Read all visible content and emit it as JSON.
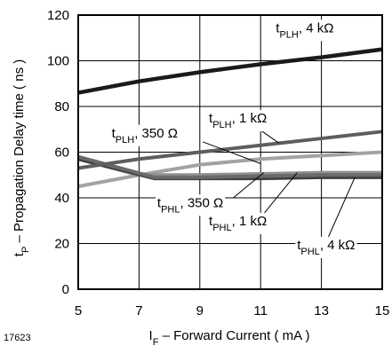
{
  "figure_id": "17623",
  "chart_data": {
    "type": "line",
    "xlabel": {
      "main": "I",
      "sub": "F",
      "rest": " – Forward  Current  ( mA )"
    },
    "ylabel": {
      "main": "t",
      "sub": "P",
      "rest": " – Propagation  Delay  time  ( ns )"
    },
    "xlim": [
      5,
      15
    ],
    "ylim": [
      0,
      120
    ],
    "xticks": [
      5,
      7,
      9,
      11,
      13,
      15
    ],
    "yticks": [
      0,
      20,
      40,
      60,
      80,
      100,
      120
    ],
    "grid": true,
    "series": [
      {
        "name": "tPLH, 4 kΩ",
        "label": {
          "main": "t",
          "sub": "PLH",
          "rest": ", 4 kΩ"
        },
        "color": "#1a1a1a",
        "x": [
          5,
          7,
          9,
          11,
          13,
          15
        ],
        "y": [
          86,
          91,
          95,
          98.5,
          101.5,
          105
        ]
      },
      {
        "name": "tPLH, 1 kΩ",
        "label": {
          "main": "t",
          "sub": "PLH",
          "rest": ", 1 kΩ"
        },
        "color": "#5e5e5e",
        "x": [
          5,
          7,
          9,
          11,
          13,
          15
        ],
        "y": [
          53,
          57,
          60,
          63,
          66,
          69
        ]
      },
      {
        "name": "tPLH, 350 Ω",
        "label": {
          "main": "t",
          "sub": "PLH",
          "rest": ", 350 Ω"
        },
        "color": "#a3a3a3",
        "x": [
          5,
          7,
          9,
          11,
          13,
          15
        ],
        "y": [
          45,
          50,
          54.5,
          57,
          58.5,
          60
        ]
      },
      {
        "name": "tPHL, 350 Ω",
        "label": {
          "main": "t",
          "sub": "PHL",
          "rest": ", 350 Ω"
        },
        "color": "#6a6a6a",
        "x": [
          5,
          7.5,
          9,
          11,
          13,
          15
        ],
        "y": [
          58,
          49,
          49,
          49.5,
          50,
          50
        ]
      },
      {
        "name": "tPHL, 1 kΩ",
        "label": {
          "main": "t",
          "sub": "PHL",
          "rest": ", 1 kΩ"
        },
        "color": "#909090",
        "x": [
          5,
          7,
          9,
          11,
          13,
          15
        ],
        "y": [
          57,
          50,
          50,
          50.5,
          51,
          51
        ]
      },
      {
        "name": "tPHL, 4 kΩ",
        "label": {
          "main": "t",
          "sub": "PHL",
          "rest": ", 4 kΩ"
        },
        "color": "#404040",
        "x": [
          5,
          7.5,
          9,
          11,
          13,
          15
        ],
        "y": [
          57,
          48.5,
          48.5,
          48.5,
          49,
          49
        ]
      }
    ],
    "annotations": [
      {
        "series": 0,
        "text_x": 11.5,
        "text_y": 112.5,
        "anchor": "start",
        "lead": null
      },
      {
        "series": 1,
        "text_x": 9.3,
        "text_y": 73,
        "anchor": "start",
        "lead": [
          [
            10.9,
            70.5
          ],
          [
            11.6,
            64
          ]
        ]
      },
      {
        "series": 2,
        "text_x": 6.1,
        "text_y": 66.5,
        "anchor": "start",
        "lead": [
          [
            9.1,
            64.5
          ],
          [
            11,
            55
          ]
        ]
      },
      {
        "series": 3,
        "text_x": 7.6,
        "text_y": 36,
        "anchor": "start",
        "lead": [
          [
            10.1,
            40
          ],
          [
            11.1,
            51
          ]
        ]
      },
      {
        "series": 4,
        "text_x": 9.3,
        "text_y": 28,
        "anchor": "start",
        "lead": [
          [
            11.1,
            33
          ],
          [
            12.2,
            51
          ]
        ]
      },
      {
        "series": 5,
        "text_x": 12.2,
        "text_y": 17.5,
        "anchor": "start",
        "lead": [
          [
            13.2,
            22
          ],
          [
            14.1,
            49
          ]
        ]
      }
    ]
  }
}
